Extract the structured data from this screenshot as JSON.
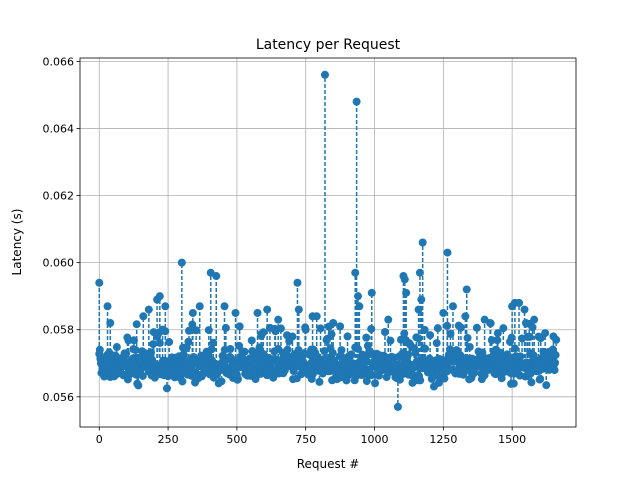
{
  "chart_data": {
    "type": "scatter",
    "title": "Latency per Request",
    "xlabel": "Request #",
    "ylabel": "Latency (s)",
    "xlim": [
      -70,
      1732
    ],
    "ylim": [
      0.0551,
      0.0661
    ],
    "xticks": [
      0,
      250,
      500,
      750,
      1000,
      1250,
      1500
    ],
    "yticks": [
      0.056,
      0.058,
      0.06,
      0.062,
      0.064,
      0.066
    ],
    "ytick_labels": [
      "0.056",
      "0.058",
      "0.060",
      "0.062",
      "0.064",
      "0.066"
    ],
    "grid": true,
    "baseline": 0.0568,
    "n_points": 1660,
    "marker": "circle",
    "stem_style": "dashed",
    "color": "#1f77b4",
    "value_range": [
      0.0557,
      0.0656
    ],
    "typical_band": [
      0.0559,
      0.058
    ],
    "series": [
      {
        "points": [
          [
            0,
            0.0594
          ],
          [
            30,
            0.0587
          ],
          [
            40,
            0.0582
          ],
          [
            160,
            0.0584
          ],
          [
            180,
            0.0586
          ],
          [
            210,
            0.0589
          ],
          [
            220,
            0.059
          ],
          [
            240,
            0.0587
          ],
          [
            300,
            0.06
          ],
          [
            340,
            0.0585
          ],
          [
            365,
            0.0587
          ],
          [
            405,
            0.0597
          ],
          [
            425,
            0.0596
          ],
          [
            455,
            0.0587
          ],
          [
            495,
            0.0585
          ],
          [
            510,
            0.0581
          ],
          [
            575,
            0.0585
          ],
          [
            610,
            0.0586
          ],
          [
            650,
            0.0583
          ],
          [
            720,
            0.0594
          ],
          [
            725,
            0.0586
          ],
          [
            775,
            0.0584
          ],
          [
            790,
            0.0584
          ],
          [
            820,
            0.0656
          ],
          [
            850,
            0.0582
          ],
          [
            875,
            0.0581
          ],
          [
            930,
            0.0597
          ],
          [
            935,
            0.0648
          ],
          [
            940,
            0.059
          ],
          [
            945,
            0.0587
          ],
          [
            990,
            0.0591
          ],
          [
            1050,
            0.0583
          ],
          [
            1085,
            0.0557
          ],
          [
            1105,
            0.0596
          ],
          [
            1110,
            0.0595
          ],
          [
            1115,
            0.0591
          ],
          [
            1160,
            0.0586
          ],
          [
            1165,
            0.0597
          ],
          [
            1170,
            0.0589
          ],
          [
            1175,
            0.0606
          ],
          [
            1250,
            0.0585
          ],
          [
            1265,
            0.0603
          ],
          [
            1285,
            0.0587
          ],
          [
            1330,
            0.0584
          ],
          [
            1335,
            0.0592
          ],
          [
            1400,
            0.0583
          ],
          [
            1420,
            0.0582
          ],
          [
            1440,
            0.0574
          ],
          [
            1500,
            0.0587
          ],
          [
            1510,
            0.0588
          ],
          [
            1525,
            0.0588
          ],
          [
            1545,
            0.0586
          ],
          [
            1580,
            0.0583
          ],
          [
            1620,
            0.0579
          ],
          [
            1650,
            0.0578
          ],
          [
            1660,
            0.0577
          ]
        ]
      }
    ]
  }
}
